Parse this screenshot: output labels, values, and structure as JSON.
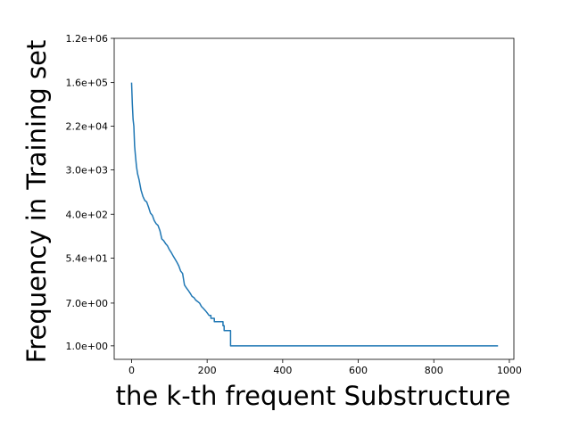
{
  "chart_data": {
    "type": "line",
    "title": "",
    "xlabel": "the k-th frequent Substructure",
    "ylabel": "Frequency in Training set",
    "x_scale": "linear",
    "y_scale": "log",
    "xlim": [
      -46,
      1012
    ],
    "ylim": [
      0.541,
      1200000.0
    ],
    "x_ticks": [
      0,
      200,
      400,
      600,
      800,
      1000
    ],
    "y_ticks": [
      {
        "value": 1200000.0,
        "label": "1.2e+06"
      },
      {
        "value": 160000.0,
        "label": "1.6e+05"
      },
      {
        "value": 22000.0,
        "label": "2.2e+04"
      },
      {
        "value": 3000.0,
        "label": "3.0e+03"
      },
      {
        "value": 400.0,
        "label": "4.0e+02"
      },
      {
        "value": 54.0,
        "label": "5.4e+01"
      },
      {
        "value": 7.0,
        "label": "7.0e+00"
      },
      {
        "value": 1.0,
        "label": "1.0e+00"
      }
    ],
    "grid": false,
    "series": [
      {
        "color": "#1f77b4",
        "points": [
          [
            0,
            160000
          ],
          [
            2,
            60000
          ],
          [
            4,
            30000
          ],
          [
            6,
            22000
          ],
          [
            8,
            9000
          ],
          [
            10,
            6000
          ],
          [
            13,
            3500
          ],
          [
            16,
            2500
          ],
          [
            20,
            1900
          ],
          [
            25,
            1200
          ],
          [
            30,
            900
          ],
          [
            35,
            750
          ],
          [
            40,
            700
          ],
          [
            45,
            550
          ],
          [
            50,
            420
          ],
          [
            55,
            380
          ],
          [
            60,
            300
          ],
          [
            65,
            260
          ],
          [
            70,
            240
          ],
          [
            75,
            190
          ],
          [
            80,
            130
          ],
          [
            85,
            120
          ],
          [
            90,
            105
          ],
          [
            95,
            95
          ],
          [
            100,
            80
          ],
          [
            105,
            70
          ],
          [
            110,
            60
          ],
          [
            115,
            52
          ],
          [
            120,
            45
          ],
          [
            125,
            38
          ],
          [
            130,
            30
          ],
          [
            135,
            27
          ],
          [
            140,
            16
          ],
          [
            145,
            14
          ],
          [
            150,
            12.5
          ],
          [
            155,
            11
          ],
          [
            160,
            9.5
          ],
          [
            165,
            9
          ],
          [
            170,
            8
          ],
          [
            175,
            7.5
          ],
          [
            180,
            7
          ],
          [
            185,
            6
          ],
          [
            190,
            5.5
          ],
          [
            195,
            5
          ],
          [
            200,
            4.5
          ],
          [
            205,
            4
          ],
          [
            210,
            4
          ],
          [
            210,
            3.5
          ],
          [
            219,
            3.5
          ],
          [
            219,
            3
          ],
          [
            242,
            3
          ],
          [
            242,
            2.5
          ],
          [
            245,
            2.5
          ],
          [
            245,
            2
          ],
          [
            262,
            2
          ],
          [
            262,
            1
          ],
          [
            970,
            1
          ]
        ]
      }
    ]
  }
}
